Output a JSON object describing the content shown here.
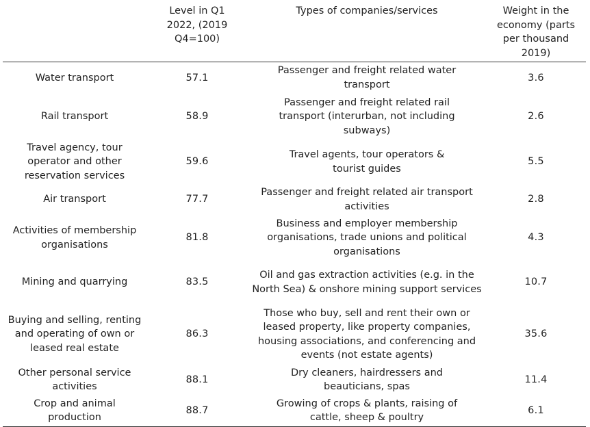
{
  "table": {
    "headers": [
      "",
      "Level in Q1 2022, (2019 Q4=100)",
      "Types of companies/services",
      "Weight in the economy (parts per thousand 2019)"
    ],
    "rows": [
      {
        "sector": "Water transport",
        "level": "57.1",
        "types": "Passenger and freight related water transport",
        "weight": "3.6"
      },
      {
        "sector": "Rail transport",
        "level": "58.9",
        "types": "Passenger and freight related rail transport (interurban, not including subways)",
        "weight": "2.6"
      },
      {
        "sector": "Travel agency, tour operator and other reservation services",
        "level": "59.6",
        "types": "Travel agents, tour operators & tourist guides",
        "weight": "5.5"
      },
      {
        "sector": "Air transport",
        "level": "77.7",
        "types": "Passenger and freight related air transport activities",
        "weight": "2.8"
      },
      {
        "sector": "Activities of membership organisations",
        "level": "81.8",
        "types": "Business and employer membership organisations, trade unions and political organisations",
        "weight": "4.3"
      },
      {
        "sector": "Mining and quarrying",
        "level": "83.5",
        "types": "Oil and gas extraction activities (e.g. in the North Sea) & onshore mining support services",
        "weight": "10.7"
      },
      {
        "sector": "Buying and selling, renting and operating of own or leased real estate",
        "level": "86.3",
        "types": "Those who buy, sell and rent their own or leased property, like property companies, housing associations, and conferencing and events (not estate agents)",
        "weight": "35.6"
      },
      {
        "sector": "Other personal service activities",
        "level": "88.1",
        "types": "Dry cleaners, hairdressers and beauticians, spas",
        "weight": "11.4"
      },
      {
        "sector": "Crop and animal production",
        "level": "88.7",
        "types": "Growing of crops & plants, raising of cattle, sheep & poultry",
        "weight": "6.1"
      }
    ]
  }
}
